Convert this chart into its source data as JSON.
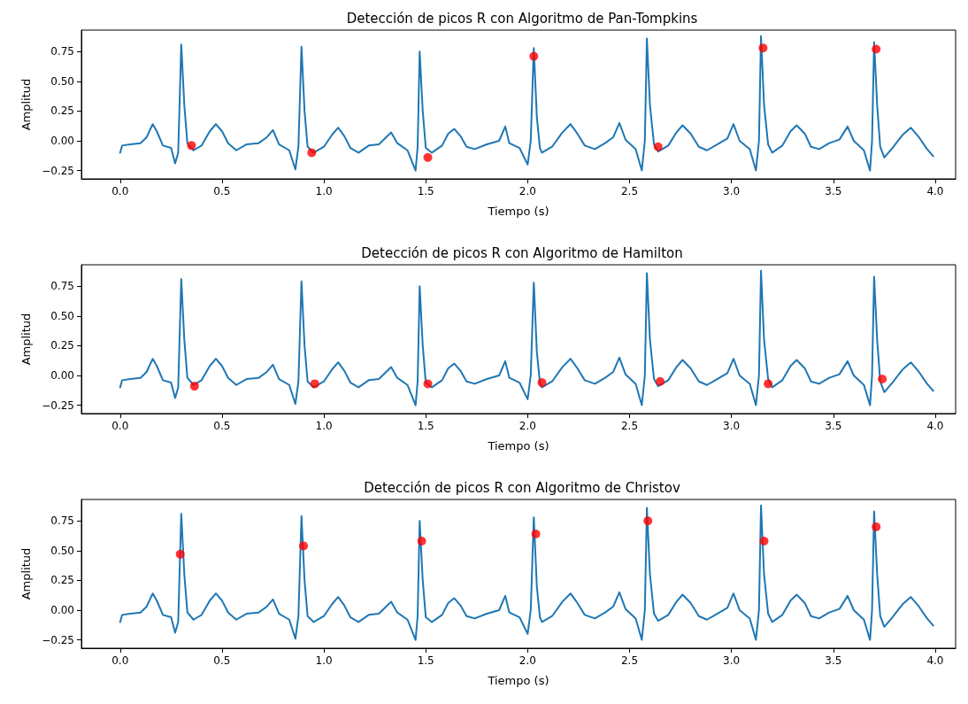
{
  "chart_data": [
    {
      "type": "line",
      "title": "Detección de picos R con Algoritmo de Pan-Tompkins",
      "xlabel": "Tiempo (s)",
      "ylabel": "Amplitud",
      "xlim": [
        -0.19,
        4.1
      ],
      "ylim": [
        -0.32,
        0.93
      ],
      "xticks": [
        {
          "value": 0,
          "label": "0.0"
        },
        {
          "value": 0.5,
          "label": "0.5"
        },
        {
          "value": 1,
          "label": "1.0"
        },
        {
          "value": 1.5,
          "label": "1.5"
        },
        {
          "value": 2,
          "label": "2.0"
        },
        {
          "value": 2.5,
          "label": "2.5"
        },
        {
          "value": 3,
          "label": "3.0"
        },
        {
          "value": 3.5,
          "label": "3.5"
        },
        {
          "value": 4,
          "label": "4.0"
        }
      ],
      "yticks": [
        {
          "value": -0.25,
          "label": "−0.25"
        },
        {
          "value": 0,
          "label": "0.00"
        },
        {
          "value": 0.25,
          "label": "0.25"
        },
        {
          "value": 0.5,
          "label": "0.50"
        },
        {
          "value": 0.75,
          "label": "0.75"
        }
      ],
      "grid": false,
      "series": [
        {
          "color": "#1f77b4",
          "marker": "none",
          "x": [
            0,
            0.01,
            0.05,
            0.1,
            0.13,
            0.16,
            0.18,
            0.21,
            0.25,
            0.27,
            0.285,
            0.3,
            0.315,
            0.33,
            0.36,
            0.4,
            0.44,
            0.47,
            0.5,
            0.53,
            0.57,
            0.62,
            0.68,
            0.72,
            0.75,
            0.78,
            0.83,
            0.86,
            0.875,
            0.89,
            0.905,
            0.92,
            0.95,
            1,
            1.04,
            1.07,
            1.1,
            1.13,
            1.17,
            1.22,
            1.27,
            1.3,
            1.33,
            1.36,
            1.41,
            1.45,
            1.46,
            1.47,
            1.485,
            1.5,
            1.53,
            1.58,
            1.61,
            1.64,
            1.67,
            1.7,
            1.74,
            1.8,
            1.86,
            1.89,
            1.91,
            1.96,
            2,
            2.015,
            2.03,
            2.045,
            2.06,
            2.07,
            2.12,
            2.17,
            2.21,
            2.24,
            2.28,
            2.33,
            2.38,
            2.42,
            2.45,
            2.48,
            2.53,
            2.56,
            2.575,
            2.585,
            2.6,
            2.62,
            2.64,
            2.69,
            2.73,
            2.76,
            2.8,
            2.84,
            2.88,
            2.93,
            2.98,
            3.01,
            3.04,
            3.09,
            3.12,
            3.135,
            3.145,
            3.16,
            3.18,
            3.2,
            3.25,
            3.29,
            3.32,
            3.36,
            3.39,
            3.43,
            3.48,
            3.53,
            3.57,
            3.6,
            3.65,
            3.68,
            3.69,
            3.7,
            3.715,
            3.73,
            3.75,
            3.79,
            3.84,
            3.88,
            3.92,
            3.96,
            3.99
          ],
          "values": [
            -0.1,
            -0.04,
            -0.03,
            -0.02,
            0.03,
            0.14,
            0.08,
            -0.04,
            -0.06,
            -0.19,
            -0.1,
            0.81,
            0.3,
            -0.02,
            -0.08,
            -0.04,
            0.08,
            0.14,
            0.08,
            -0.02,
            -0.08,
            -0.03,
            -0.02,
            0.03,
            0.09,
            -0.03,
            -0.08,
            -0.24,
            -0.05,
            0.79,
            0.25,
            -0.05,
            -0.1,
            -0.05,
            0.05,
            0.11,
            0.04,
            -0.06,
            -0.1,
            -0.04,
            -0.03,
            0.02,
            0.07,
            -0.02,
            -0.08,
            -0.25,
            -0.05,
            0.75,
            0.25,
            -0.06,
            -0.1,
            -0.04,
            0.06,
            0.1,
            0.04,
            -0.05,
            -0.07,
            -0.03,
            0,
            0.12,
            -0.02,
            -0.06,
            -0.2,
            0,
            0.78,
            0.2,
            -0.06,
            -0.1,
            -0.05,
            0.07,
            0.14,
            0.07,
            -0.04,
            -0.07,
            -0.02,
            0.03,
            0.15,
            0.01,
            -0.07,
            -0.25,
            0,
            0.86,
            0.3,
            -0.03,
            -0.09,
            -0.04,
            0.07,
            0.13,
            0.06,
            -0.05,
            -0.08,
            -0.03,
            0.02,
            0.14,
            0,
            -0.07,
            -0.25,
            0,
            0.88,
            0.3,
            -0.03,
            -0.1,
            -0.04,
            0.08,
            0.13,
            0.06,
            -0.05,
            -0.07,
            -0.02,
            0.01,
            0.12,
            0,
            -0.08,
            -0.25,
            0,
            0.83,
            0.3,
            -0.05,
            -0.14,
            -0.06,
            0.05,
            0.11,
            0.03,
            -0.07,
            -0.13
          ]
        },
        {
          "type": "scatter",
          "color": "#ff0000",
          "marker": "circle",
          "x": [
            0.35,
            0.94,
            1.51,
            2.03,
            2.64,
            3.155,
            3.71
          ],
          "values": [
            -0.04,
            -0.1,
            -0.14,
            0.71,
            -0.05,
            0.78,
            0.77
          ]
        }
      ]
    },
    {
      "type": "line",
      "title": "Detección de picos R con Algoritmo de Hamilton",
      "xlabel": "Tiempo (s)",
      "ylabel": "Amplitud",
      "xlim": [
        -0.19,
        4.1
      ],
      "ylim": [
        -0.32,
        0.93
      ],
      "xticks": [
        {
          "value": 0,
          "label": "0.0"
        },
        {
          "value": 0.5,
          "label": "0.5"
        },
        {
          "value": 1,
          "label": "1.0"
        },
        {
          "value": 1.5,
          "label": "1.5"
        },
        {
          "value": 2,
          "label": "2.0"
        },
        {
          "value": 2.5,
          "label": "2.5"
        },
        {
          "value": 3,
          "label": "3.0"
        },
        {
          "value": 3.5,
          "label": "3.5"
        },
        {
          "value": 4,
          "label": "4.0"
        }
      ],
      "yticks": [
        {
          "value": -0.25,
          "label": "−0.25"
        },
        {
          "value": 0,
          "label": "0.00"
        },
        {
          "value": 0.25,
          "label": "0.25"
        },
        {
          "value": 0.5,
          "label": "0.50"
        },
        {
          "value": 0.75,
          "label": "0.75"
        }
      ],
      "grid": false,
      "series": [
        {
          "color": "#1f77b4",
          "marker": "none",
          "x": [
            0,
            0.01,
            0.05,
            0.1,
            0.13,
            0.16,
            0.18,
            0.21,
            0.25,
            0.27,
            0.285,
            0.3,
            0.315,
            0.33,
            0.36,
            0.4,
            0.44,
            0.47,
            0.5,
            0.53,
            0.57,
            0.62,
            0.68,
            0.72,
            0.75,
            0.78,
            0.83,
            0.86,
            0.875,
            0.89,
            0.905,
            0.92,
            0.95,
            1,
            1.04,
            1.07,
            1.1,
            1.13,
            1.17,
            1.22,
            1.27,
            1.3,
            1.33,
            1.36,
            1.41,
            1.45,
            1.46,
            1.47,
            1.485,
            1.5,
            1.53,
            1.58,
            1.61,
            1.64,
            1.67,
            1.7,
            1.74,
            1.8,
            1.86,
            1.89,
            1.91,
            1.96,
            2,
            2.015,
            2.03,
            2.045,
            2.06,
            2.07,
            2.12,
            2.17,
            2.21,
            2.24,
            2.28,
            2.33,
            2.38,
            2.42,
            2.45,
            2.48,
            2.53,
            2.56,
            2.575,
            2.585,
            2.6,
            2.62,
            2.64,
            2.69,
            2.73,
            2.76,
            2.8,
            2.84,
            2.88,
            2.93,
            2.98,
            3.01,
            3.04,
            3.09,
            3.12,
            3.135,
            3.145,
            3.16,
            3.18,
            3.2,
            3.25,
            3.29,
            3.32,
            3.36,
            3.39,
            3.43,
            3.48,
            3.53,
            3.57,
            3.6,
            3.65,
            3.68,
            3.69,
            3.7,
            3.715,
            3.73,
            3.75,
            3.79,
            3.84,
            3.88,
            3.92,
            3.96,
            3.99
          ],
          "values": [
            -0.1,
            -0.04,
            -0.03,
            -0.02,
            0.03,
            0.14,
            0.08,
            -0.04,
            -0.06,
            -0.19,
            -0.1,
            0.81,
            0.3,
            -0.02,
            -0.08,
            -0.04,
            0.08,
            0.14,
            0.08,
            -0.02,
            -0.08,
            -0.03,
            -0.02,
            0.03,
            0.09,
            -0.03,
            -0.08,
            -0.24,
            -0.05,
            0.79,
            0.25,
            -0.05,
            -0.1,
            -0.05,
            0.05,
            0.11,
            0.04,
            -0.06,
            -0.1,
            -0.04,
            -0.03,
            0.02,
            0.07,
            -0.02,
            -0.08,
            -0.25,
            -0.05,
            0.75,
            0.25,
            -0.06,
            -0.1,
            -0.04,
            0.06,
            0.1,
            0.04,
            -0.05,
            -0.07,
            -0.03,
            0,
            0.12,
            -0.02,
            -0.06,
            -0.2,
            0,
            0.78,
            0.2,
            -0.06,
            -0.1,
            -0.05,
            0.07,
            0.14,
            0.07,
            -0.04,
            -0.07,
            -0.02,
            0.03,
            0.15,
            0.01,
            -0.07,
            -0.25,
            0,
            0.86,
            0.3,
            -0.03,
            -0.09,
            -0.04,
            0.07,
            0.13,
            0.06,
            -0.05,
            -0.08,
            -0.03,
            0.02,
            0.14,
            0,
            -0.07,
            -0.25,
            0,
            0.88,
            0.3,
            -0.03,
            -0.1,
            -0.04,
            0.08,
            0.13,
            0.06,
            -0.05,
            -0.07,
            -0.02,
            0.01,
            0.12,
            0,
            -0.08,
            -0.25,
            0,
            0.83,
            0.3,
            -0.05,
            -0.14,
            -0.06,
            0.05,
            0.11,
            0.03,
            -0.07,
            -0.13
          ]
        },
        {
          "type": "scatter",
          "color": "#ff0000",
          "marker": "circle",
          "x": [
            0.365,
            0.955,
            1.51,
            2.07,
            2.65,
            3.18,
            3.74
          ],
          "values": [
            -0.09,
            -0.07,
            -0.07,
            -0.06,
            -0.05,
            -0.07,
            -0.03
          ]
        }
      ]
    },
    {
      "type": "line",
      "title": "Detección de picos R con Algoritmo de Christov",
      "xlabel": "Tiempo (s)",
      "ylabel": "Amplitud",
      "xlim": [
        -0.19,
        4.1
      ],
      "ylim": [
        -0.32,
        0.93
      ],
      "xticks": [
        {
          "value": 0,
          "label": "0.0"
        },
        {
          "value": 0.5,
          "label": "0.5"
        },
        {
          "value": 1,
          "label": "1.0"
        },
        {
          "value": 1.5,
          "label": "1.5"
        },
        {
          "value": 2,
          "label": "2.0"
        },
        {
          "value": 2.5,
          "label": "2.5"
        },
        {
          "value": 3,
          "label": "3.0"
        },
        {
          "value": 3.5,
          "label": "3.5"
        },
        {
          "value": 4,
          "label": "4.0"
        }
      ],
      "yticks": [
        {
          "value": -0.25,
          "label": "−0.25"
        },
        {
          "value": 0,
          "label": "0.00"
        },
        {
          "value": 0.25,
          "label": "0.25"
        },
        {
          "value": 0.5,
          "label": "0.50"
        },
        {
          "value": 0.75,
          "label": "0.75"
        }
      ],
      "grid": false,
      "series": [
        {
          "color": "#1f77b4",
          "marker": "none",
          "x": [
            0,
            0.01,
            0.05,
            0.1,
            0.13,
            0.16,
            0.18,
            0.21,
            0.25,
            0.27,
            0.285,
            0.3,
            0.315,
            0.33,
            0.36,
            0.4,
            0.44,
            0.47,
            0.5,
            0.53,
            0.57,
            0.62,
            0.68,
            0.72,
            0.75,
            0.78,
            0.83,
            0.86,
            0.875,
            0.89,
            0.905,
            0.92,
            0.95,
            1,
            1.04,
            1.07,
            1.1,
            1.13,
            1.17,
            1.22,
            1.27,
            1.3,
            1.33,
            1.36,
            1.41,
            1.45,
            1.46,
            1.47,
            1.485,
            1.5,
            1.53,
            1.58,
            1.61,
            1.64,
            1.67,
            1.7,
            1.74,
            1.8,
            1.86,
            1.89,
            1.91,
            1.96,
            2,
            2.015,
            2.03,
            2.045,
            2.06,
            2.07,
            2.12,
            2.17,
            2.21,
            2.24,
            2.28,
            2.33,
            2.38,
            2.42,
            2.45,
            2.48,
            2.53,
            2.56,
            2.575,
            2.585,
            2.6,
            2.62,
            2.64,
            2.69,
            2.73,
            2.76,
            2.8,
            2.84,
            2.88,
            2.93,
            2.98,
            3.01,
            3.04,
            3.09,
            3.12,
            3.135,
            3.145,
            3.16,
            3.18,
            3.2,
            3.25,
            3.29,
            3.32,
            3.36,
            3.39,
            3.43,
            3.48,
            3.53,
            3.57,
            3.6,
            3.65,
            3.68,
            3.69,
            3.7,
            3.715,
            3.73,
            3.75,
            3.79,
            3.84,
            3.88,
            3.92,
            3.96,
            3.99
          ],
          "values": [
            -0.1,
            -0.04,
            -0.03,
            -0.02,
            0.03,
            0.14,
            0.08,
            -0.04,
            -0.06,
            -0.19,
            -0.1,
            0.81,
            0.3,
            -0.02,
            -0.08,
            -0.04,
            0.08,
            0.14,
            0.08,
            -0.02,
            -0.08,
            -0.03,
            -0.02,
            0.03,
            0.09,
            -0.03,
            -0.08,
            -0.24,
            -0.05,
            0.79,
            0.25,
            -0.05,
            -0.1,
            -0.05,
            0.05,
            0.11,
            0.04,
            -0.06,
            -0.1,
            -0.04,
            -0.03,
            0.02,
            0.07,
            -0.02,
            -0.08,
            -0.25,
            -0.05,
            0.75,
            0.25,
            -0.06,
            -0.1,
            -0.04,
            0.06,
            0.1,
            0.04,
            -0.05,
            -0.07,
            -0.03,
            0,
            0.12,
            -0.02,
            -0.06,
            -0.2,
            0,
            0.78,
            0.2,
            -0.06,
            -0.1,
            -0.05,
            0.07,
            0.14,
            0.07,
            -0.04,
            -0.07,
            -0.02,
            0.03,
            0.15,
            0.01,
            -0.07,
            -0.25,
            0,
            0.86,
            0.3,
            -0.03,
            -0.09,
            -0.04,
            0.07,
            0.13,
            0.06,
            -0.05,
            -0.08,
            -0.03,
            0.02,
            0.14,
            0,
            -0.07,
            -0.25,
            0,
            0.88,
            0.3,
            -0.03,
            -0.1,
            -0.04,
            0.08,
            0.13,
            0.06,
            -0.05,
            -0.07,
            -0.02,
            0.01,
            0.12,
            0,
            -0.08,
            -0.25,
            0,
            0.83,
            0.3,
            -0.05,
            -0.14,
            -0.06,
            0.05,
            0.11,
            0.03,
            -0.07,
            -0.13
          ]
        },
        {
          "type": "scatter",
          "color": "#ff0000",
          "marker": "circle",
          "x": [
            0.295,
            0.9,
            1.48,
            2.04,
            2.59,
            3.16,
            3.71
          ],
          "values": [
            0.47,
            0.54,
            0.58,
            0.64,
            0.75,
            0.58,
            0.7
          ]
        }
      ]
    }
  ]
}
